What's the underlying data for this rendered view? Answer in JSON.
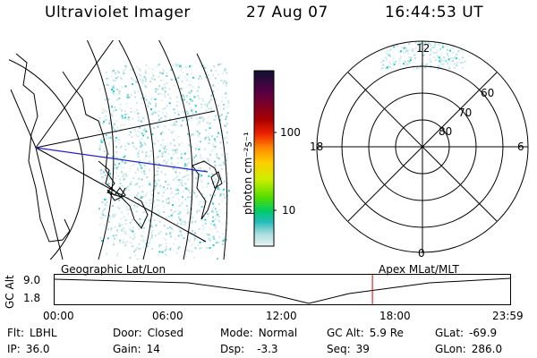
{
  "header": {
    "title": "Ultraviolet Imager",
    "date": "27 Aug 07",
    "time": "16:44:53 UT"
  },
  "colorbar": {
    "unit_label": "photon cm⁻²s⁻¹",
    "ticks": [
      "100",
      "10"
    ],
    "colors": [
      "#111133",
      "#550044",
      "#aa0000",
      "#ee2200",
      "#ff8800",
      "#ffcc00",
      "#ccee00",
      "#55dd00",
      "#00cc66",
      "#22bbbb",
      "#aadddd",
      "#e8f4f4"
    ]
  },
  "polar_plot": {
    "lat_labels": [
      "60",
      "70",
      "80"
    ],
    "mlt_labels": {
      "top": "12",
      "left": "18",
      "right": "6",
      "bottom": "0"
    }
  },
  "timeline": {
    "ylabel": "GC Alt",
    "y_ticks": [
      "9.0",
      "1.8"
    ],
    "left_label": "Geographic Lat/Lon",
    "right_label": "Apex MLat/MLT",
    "x_ticks": [
      "00:00",
      "06:00",
      "12:00",
      "18:00",
      "23:59"
    ],
    "current_marker_time": "16:44"
  },
  "status": {
    "filter_label": "Flt:",
    "filter_value": "LBHL",
    "ip_label": "IP:",
    "ip_value": "36.0",
    "door_label": "Door:",
    "door_value": "Closed",
    "gain_label": "Gain:",
    "gain_value": "14",
    "mode_label": "Mode:",
    "mode_value": "Normal",
    "dsp_label": "Dsp:",
    "dsp_value": "-3.3",
    "gcalt_label": "GC Alt:",
    "gcalt_value": "5.9 Re",
    "seq_label": "Seq:",
    "seq_value": "39",
    "glat_label": "GLat:",
    "glat_value": "-69.9",
    "glon_label": "GLon:",
    "glon_value": "286.0"
  }
}
